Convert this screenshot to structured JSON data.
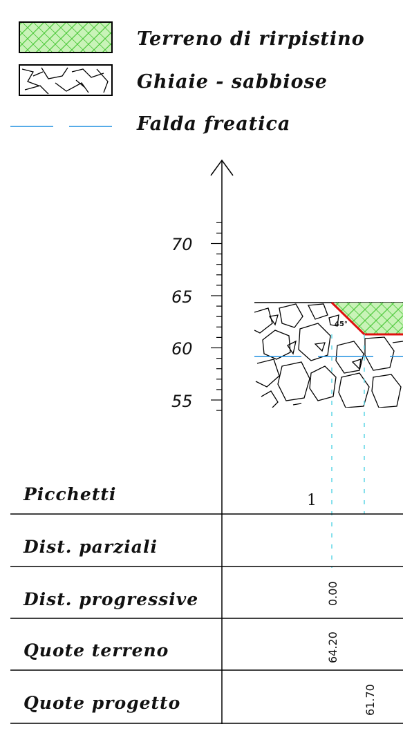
{
  "legend": {
    "fill_label": "Terreno di rirpistino",
    "gravel_label": "Ghiaie - sabbiose",
    "water_label": "Falda freatica"
  },
  "axis": {
    "ticks": [
      "70",
      "65",
      "60",
      "55"
    ]
  },
  "profile": {
    "angle_label": "45°"
  },
  "table": {
    "picchetti_label": "Picchetti",
    "dist_parziali_label": "Dist. parziali",
    "dist_progressive_label": "Dist. progressive",
    "quote_terreno_label": "Quote terreno",
    "quote_progetto_label": "Quote progetto",
    "picchetto_value": "1",
    "dist_progressive_value": "0.00",
    "quote_terreno_value": "64.20",
    "quote_progetto_value": "61.70"
  },
  "colors": {
    "fill_green": "#7ee06a",
    "water_blue": "#1f8fe0",
    "cut_red": "#e01010",
    "guide_cyan": "#5fd6e6"
  }
}
